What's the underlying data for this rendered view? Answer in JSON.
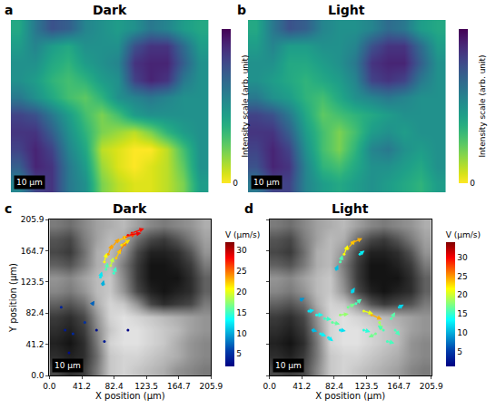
{
  "chart_data": [
    {
      "type": "heatmap",
      "panel_label": "a",
      "title": "Dark",
      "scale_bar": "10 μm",
      "tick_labels": false,
      "color": "viridis_r",
      "cells": [
        [
          0.55,
          0.8,
          0.85,
          0.6,
          0.5,
          0.2,
          0.1,
          0.05,
          0.05,
          0.1,
          0.2,
          0.45
        ],
        [
          0.7,
          0.9,
          0.85,
          0.6,
          0.45,
          0.15,
          0.05,
          0.0,
          0.05,
          0.1,
          0.25,
          0.5
        ],
        [
          0.8,
          0.9,
          0.8,
          0.55,
          0.4,
          0.1,
          0.05,
          0.0,
          0.0,
          0.1,
          0.3,
          0.5
        ],
        [
          0.85,
          0.85,
          0.7,
          0.5,
          0.35,
          0.2,
          0.15,
          0.1,
          0.2,
          0.35,
          0.45,
          0.5
        ],
        [
          0.8,
          0.75,
          0.6,
          0.45,
          0.3,
          0.2,
          0.3,
          0.45,
          0.5,
          0.5,
          0.5,
          0.5
        ],
        [
          0.6,
          0.5,
          0.4,
          0.3,
          0.25,
          0.35,
          0.5,
          0.55,
          0.6,
          0.55,
          0.5,
          0.5
        ],
        [
          0.5,
          0.45,
          0.35,
          0.3,
          0.35,
          0.45,
          0.5,
          0.8,
          0.9,
          0.85,
          0.6,
          0.5
        ],
        [
          0.5,
          0.5,
          0.4,
          0.35,
          0.45,
          0.5,
          0.55,
          0.85,
          0.9,
          0.9,
          0.7,
          0.5
        ],
        [
          0.45,
          0.55,
          0.45,
          0.4,
          0.5,
          0.5,
          0.5,
          0.75,
          0.85,
          0.85,
          0.65,
          0.45
        ],
        [
          0.4,
          0.6,
          0.75,
          0.7,
          0.55,
          0.5,
          0.45,
          0.5,
          0.6,
          0.55,
          0.45,
          0.4
        ]
      ],
      "colorbar": {
        "title": "Intensity scale (arb. unit)",
        "range": [
          0,
          1
        ],
        "ticks": [
          0
        ]
      }
    },
    {
      "type": "heatmap",
      "panel_label": "b",
      "title": "Light",
      "scale_bar": "10 μm",
      "tick_labels": false,
      "color": "viridis_r",
      "cells": [
        [
          0.6,
          0.8,
          0.8,
          0.55,
          0.45,
          0.4,
          0.45,
          0.5,
          0.45,
          0.4,
          0.35,
          0.45
        ],
        [
          0.75,
          0.9,
          0.85,
          0.55,
          0.35,
          0.3,
          0.4,
          0.5,
          0.5,
          0.45,
          0.4,
          0.5
        ],
        [
          0.8,
          0.9,
          0.8,
          0.5,
          0.3,
          0.2,
          0.35,
          0.55,
          0.6,
          0.5,
          0.45,
          0.5
        ],
        [
          0.85,
          0.85,
          0.7,
          0.45,
          0.3,
          0.2,
          0.3,
          0.45,
          0.5,
          0.45,
          0.5,
          0.5
        ],
        [
          0.8,
          0.75,
          0.6,
          0.4,
          0.25,
          0.3,
          0.35,
          0.4,
          0.45,
          0.5,
          0.5,
          0.5
        ],
        [
          0.6,
          0.5,
          0.45,
          0.35,
          0.3,
          0.4,
          0.5,
          0.55,
          0.6,
          0.55,
          0.5,
          0.5
        ],
        [
          0.5,
          0.45,
          0.4,
          0.35,
          0.4,
          0.45,
          0.55,
          0.8,
          0.85,
          0.8,
          0.6,
          0.5
        ],
        [
          0.5,
          0.5,
          0.4,
          0.4,
          0.45,
          0.5,
          0.6,
          0.85,
          0.9,
          0.9,
          0.7,
          0.5
        ],
        [
          0.45,
          0.55,
          0.45,
          0.45,
          0.5,
          0.5,
          0.55,
          0.75,
          0.85,
          0.85,
          0.65,
          0.45
        ],
        [
          0.4,
          0.6,
          0.75,
          0.7,
          0.55,
          0.5,
          0.5,
          0.55,
          0.65,
          0.6,
          0.45,
          0.4
        ]
      ],
      "colorbar": {
        "title": "Intensity scale (arb. unit)",
        "range": [
          0,
          1
        ],
        "ticks": [
          0
        ]
      }
    },
    {
      "type": "vector_field",
      "panel_label": "c",
      "title": "Dark",
      "scale_bar": "10 μm",
      "color": "jet",
      "x_label": "X position (μm)",
      "y_label": "Y position (μm)",
      "xlim": [
        0,
        205.9
      ],
      "ylim": [
        0,
        205.9
      ],
      "xticks": [
        {
          "value": 0,
          "label": "0.0"
        },
        41.2,
        82.4,
        123.5,
        164.7,
        205.9
      ],
      "yticks": [
        {
          "value": 0,
          "label": "0.0"
        },
        41.2,
        82.4,
        123.5,
        164.7,
        205.9
      ],
      "background": {
        "edges": [
          0,
          17.2,
          34.3,
          51.5,
          68.6,
          85.8,
          103,
          120.1,
          137.3,
          154.4,
          171.6,
          188.7,
          205.9
        ],
        "cells": [
          [
            0.3,
            0.2,
            0.25,
            0.5,
            0.8,
            0.85,
            0.8,
            0.75,
            0.7,
            0.6,
            0.55,
            0.5
          ],
          [
            0.2,
            0.15,
            0.2,
            0.45,
            0.8,
            0.85,
            0.85,
            0.8,
            0.75,
            0.7,
            0.6,
            0.55
          ],
          [
            0.15,
            0.1,
            0.2,
            0.5,
            0.85,
            0.9,
            0.9,
            0.85,
            0.8,
            0.7,
            0.6,
            0.55
          ],
          [
            0.2,
            0.15,
            0.25,
            0.55,
            0.8,
            0.9,
            0.9,
            0.85,
            0.8,
            0.75,
            0.65,
            0.6
          ],
          [
            0.25,
            0.2,
            0.3,
            0.6,
            0.85,
            0.9,
            0.85,
            0.8,
            0.75,
            0.7,
            0.65,
            0.6
          ],
          [
            0.4,
            0.35,
            0.45,
            0.7,
            0.85,
            0.8,
            0.6,
            0.3,
            0.2,
            0.25,
            0.3,
            0.5
          ],
          [
            0.55,
            0.5,
            0.6,
            0.75,
            0.8,
            0.6,
            0.3,
            0.15,
            0.1,
            0.15,
            0.2,
            0.4
          ],
          [
            0.6,
            0.55,
            0.65,
            0.75,
            0.8,
            0.55,
            0.25,
            0.1,
            0.1,
            0.1,
            0.2,
            0.4
          ],
          [
            0.4,
            0.35,
            0.5,
            0.7,
            0.75,
            0.5,
            0.25,
            0.1,
            0.1,
            0.15,
            0.25,
            0.5
          ],
          [
            0.3,
            0.25,
            0.45,
            0.7,
            0.75,
            0.6,
            0.3,
            0.15,
            0.15,
            0.2,
            0.35,
            0.6
          ],
          [
            0.35,
            0.3,
            0.5,
            0.65,
            0.75,
            0.7,
            0.45,
            0.3,
            0.25,
            0.35,
            0.5,
            0.65
          ],
          [
            0.5,
            0.45,
            0.55,
            0.65,
            0.7,
            0.75,
            0.65,
            0.55,
            0.5,
            0.55,
            0.6,
            0.7
          ]
        ]
      },
      "vectors": {
        "x": [
          70,
          75,
          80,
          88,
          95,
          100,
          72,
          78,
          85,
          90,
          65,
          82,
          92,
          105,
          68,
          20,
          30,
          45,
          25,
          60,
          55,
          70,
          100,
          15
        ],
        "y": [
          150,
          160,
          170,
          178,
          182,
          185,
          140,
          145,
          155,
          165,
          130,
          135,
          172,
          188,
          120,
          60,
          55,
          70,
          30,
          60,
          95,
          45,
          60,
          90
        ],
        "u": [
          5,
          8,
          15,
          20,
          25,
          28,
          4,
          6,
          10,
          14,
          3,
          5,
          18,
          26,
          2,
          3,
          2,
          4,
          2,
          3,
          4,
          3,
          2,
          3
        ],
        "v": [
          20,
          22,
          18,
          10,
          8,
          5,
          15,
          18,
          20,
          20,
          12,
          14,
          12,
          10,
          10,
          2,
          4,
          3,
          -2,
          1,
          6,
          2,
          1,
          3
        ]
      },
      "colorbar": {
        "title": "V (μm/s)",
        "range": [
          2,
          32
        ],
        "ticks": [
          5,
          10,
          15,
          20,
          25,
          30
        ]
      }
    },
    {
      "type": "vector_field",
      "panel_label": "d",
      "title": "Light",
      "scale_bar": "10 μm",
      "color": "jet",
      "tick_labels": "x",
      "x_label": "X position (μm)",
      "xlim": [
        0,
        205.9
      ],
      "ylim": [
        0,
        205.9
      ],
      "xticks": [
        {
          "value": 0,
          "label": "0.0"
        },
        41.2,
        82.4,
        123.5,
        164.7,
        205.9
      ],
      "yticks": [
        0,
        41.2,
        82.4,
        123.5,
        164.7,
        205.9
      ],
      "background": {
        "edges": [
          0,
          17.2,
          34.3,
          51.5,
          68.6,
          85.8,
          103,
          120.1,
          137.3,
          154.4,
          171.6,
          188.7,
          205.9
        ],
        "cells": [
          [
            0.3,
            0.25,
            0.3,
            0.55,
            0.8,
            0.85,
            0.8,
            0.75,
            0.7,
            0.65,
            0.55,
            0.5
          ],
          [
            0.2,
            0.15,
            0.25,
            0.5,
            0.8,
            0.85,
            0.85,
            0.8,
            0.75,
            0.7,
            0.6,
            0.55
          ],
          [
            0.15,
            0.1,
            0.2,
            0.5,
            0.85,
            0.9,
            0.9,
            0.85,
            0.8,
            0.75,
            0.6,
            0.55
          ],
          [
            0.2,
            0.15,
            0.25,
            0.55,
            0.85,
            0.9,
            0.9,
            0.85,
            0.8,
            0.75,
            0.65,
            0.6
          ],
          [
            0.25,
            0.2,
            0.3,
            0.6,
            0.85,
            0.9,
            0.85,
            0.8,
            0.75,
            0.7,
            0.65,
            0.6
          ],
          [
            0.4,
            0.35,
            0.45,
            0.7,
            0.85,
            0.8,
            0.6,
            0.35,
            0.25,
            0.3,
            0.35,
            0.5
          ],
          [
            0.55,
            0.5,
            0.6,
            0.75,
            0.8,
            0.6,
            0.3,
            0.15,
            0.1,
            0.15,
            0.2,
            0.4
          ],
          [
            0.6,
            0.55,
            0.65,
            0.75,
            0.8,
            0.55,
            0.25,
            0.1,
            0.1,
            0.1,
            0.2,
            0.4
          ],
          [
            0.4,
            0.35,
            0.5,
            0.7,
            0.75,
            0.5,
            0.25,
            0.1,
            0.1,
            0.15,
            0.25,
            0.5
          ],
          [
            0.3,
            0.25,
            0.45,
            0.7,
            0.75,
            0.6,
            0.3,
            0.15,
            0.15,
            0.2,
            0.35,
            0.6
          ],
          [
            0.35,
            0.3,
            0.5,
            0.65,
            0.75,
            0.7,
            0.45,
            0.3,
            0.25,
            0.35,
            0.5,
            0.65
          ],
          [
            0.5,
            0.45,
            0.55,
            0.65,
            0.7,
            0.75,
            0.65,
            0.55,
            0.5,
            0.55,
            0.6,
            0.7
          ]
        ]
      },
      "vectors": {
        "x": [
          95,
          100,
          105,
          90,
          115,
          85,
          50,
          60,
          70,
          80,
          90,
          100,
          110,
          55,
          65,
          75,
          120,
          130,
          140,
          135,
          145,
          155,
          160,
          150,
          165,
          120,
          90,
          40,
          105
        ],
        "y": [
          160,
          168,
          175,
          150,
          160,
          140,
          85,
          80,
          75,
          70,
          80,
          90,
          95,
          60,
          55,
          50,
          85,
          80,
          70,
          55,
          60,
          75,
          60,
          45,
          90,
          60,
          60,
          100,
          110
        ],
        "u": [
          8,
          15,
          22,
          5,
          10,
          4,
          12,
          14,
          15,
          16,
          18,
          15,
          12,
          10,
          12,
          10,
          20,
          22,
          5,
          -15,
          -12,
          8,
          10,
          15,
          10,
          14,
          12,
          8,
          6
        ],
        "v": [
          20,
          18,
          10,
          15,
          8,
          10,
          2,
          0,
          -2,
          -4,
          2,
          8,
          10,
          -3,
          -5,
          -8,
          -6,
          -10,
          -18,
          -8,
          10,
          14,
          -12,
          -4,
          6,
          -4,
          -2,
          4,
          10
        ]
      },
      "colorbar": {
        "title": "V (μm/s)",
        "range": [
          1,
          34
        ],
        "ticks": [
          5,
          10,
          15,
          20,
          25,
          30
        ]
      }
    }
  ]
}
